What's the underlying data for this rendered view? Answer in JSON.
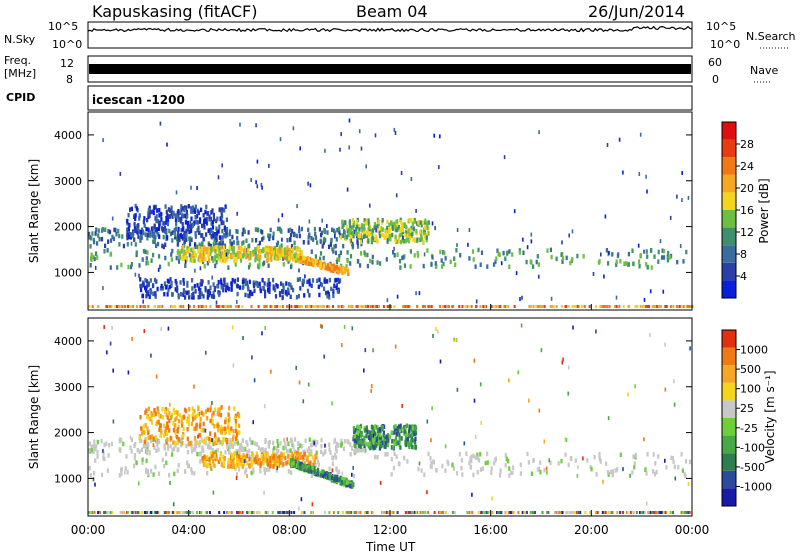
{
  "header": {
    "station": "Kapuskasing (fitACF)",
    "beam": "Beam 04",
    "date": "26/Jun/2014"
  },
  "summary_panels": {
    "nsky_label": "N.Sky",
    "nsearch_label": "N.Search",
    "noise_ticks": [
      "10^5",
      "10^0"
    ],
    "freq_label_1": "Freq.",
    "freq_label_2": "[MHz]",
    "freq_ticks": [
      "12",
      "8"
    ],
    "nave_label": "Nave",
    "nave_ticks": [
      "60",
      "0"
    ],
    "cpid_label": "CPID",
    "cpid_value": "icescan -1200"
  },
  "chart_data": [
    {
      "type": "heatmap",
      "title": "",
      "xlabel": "Time UT",
      "ylabel": "Slant Range [km]",
      "x_ticks": [
        "00:00",
        "04:00",
        "08:00",
        "12:00",
        "16:00",
        "20:00",
        "00:00"
      ],
      "xlim_hours": [
        0,
        24
      ],
      "ylim": [
        180,
        4500
      ],
      "y_ticks": [
        1000,
        2000,
        3000,
        4000
      ],
      "colorbar": {
        "label": "Power [dB]",
        "ticks": [
          "4",
          "8",
          "12",
          "16",
          "20",
          "24",
          "28"
        ],
        "colors": [
          "#0a1fd9",
          "#2b3fa8",
          "#3a6d9e",
          "#3e8f6b",
          "#6dbf3f",
          "#f3d51d",
          "#f5a623",
          "#ef7a13",
          "#e83c10",
          "#e00f0f"
        ]
      },
      "regions": [
        {
          "name": "main-echo-band",
          "t_hours": [
            0.0,
            24.0
          ],
          "range_km": [
            1150,
            1550
          ],
          "level": 3
        },
        {
          "name": "upper-echo-band",
          "t_hours": [
            0.0,
            11.0
          ],
          "range_km": [
            1600,
            2000
          ],
          "level": 2
        },
        {
          "name": "upper-cloud-early",
          "t_hours": [
            1.5,
            5.5
          ],
          "range_km": [
            1800,
            2500
          ],
          "level": 1
        },
        {
          "name": "upper-cloud-noon",
          "t_hours": [
            10.0,
            13.5
          ],
          "range_km": [
            1700,
            2200
          ],
          "level": 4
        },
        {
          "name": "strong-descending-echo",
          "t_hours": [
            7.0,
            10.3
          ],
          "range_km": [
            1050,
            1550
          ],
          "level": 6
        },
        {
          "name": "mid-echo-band",
          "t_hours": [
            3.5,
            8.5
          ],
          "range_km": [
            1300,
            1600
          ],
          "level": 5
        },
        {
          "name": "low-ground-echo",
          "t_hours": [
            2.0,
            10.0
          ],
          "range_km": [
            500,
            900
          ],
          "level": 1
        }
      ]
    },
    {
      "type": "heatmap",
      "title": "",
      "xlabel": "Time UT",
      "ylabel": "Slant Range [km]",
      "x_ticks": [
        "00:00",
        "04:00",
        "08:00",
        "12:00",
        "16:00",
        "20:00",
        "00:00"
      ],
      "xlim_hours": [
        0,
        24
      ],
      "ylim": [
        180,
        4500
      ],
      "y_ticks": [
        1000,
        2000,
        3000,
        4000
      ],
      "colorbar": {
        "label": "Velocity [m s⁻¹]",
        "ticks": [
          "1000",
          "500",
          "100",
          "25",
          "-25",
          "-100",
          "-500",
          "-1000"
        ],
        "colors": [
          "#1a1aa8",
          "#2b4a9e",
          "#2e7d4f",
          "#48a845",
          "#6bd03a",
          "#c8c8c8",
          "#f3d51d",
          "#f5a623",
          "#ef7a13",
          "#e03010"
        ]
      },
      "regions": [
        {
          "name": "ground-scatter-band",
          "t_hours": [
            0.0,
            24.0
          ],
          "range_km": [
            1100,
            1600
          ],
          "velocity_class": "near-zero"
        },
        {
          "name": "upper-scatter",
          "t_hours": [
            0.0,
            11.0
          ],
          "range_km": [
            1600,
            1900
          ],
          "velocity_class": "near-zero"
        },
        {
          "name": "receding-cloud",
          "t_hours": [
            2.0,
            6.0
          ],
          "range_km": [
            1800,
            2600
          ],
          "velocity_class": "negative"
        },
        {
          "name": "receding-mid",
          "t_hours": [
            4.5,
            9.0
          ],
          "range_km": [
            1300,
            1600
          ],
          "velocity_class": "negative"
        },
        {
          "name": "approaching-descending",
          "t_hours": [
            8.0,
            10.5
          ],
          "range_km": [
            900,
            1400
          ],
          "velocity_class": "positive"
        },
        {
          "name": "approaching-noon",
          "t_hours": [
            10.5,
            13.0
          ],
          "range_km": [
            1700,
            2200
          ],
          "velocity_class": "positive"
        }
      ]
    }
  ]
}
